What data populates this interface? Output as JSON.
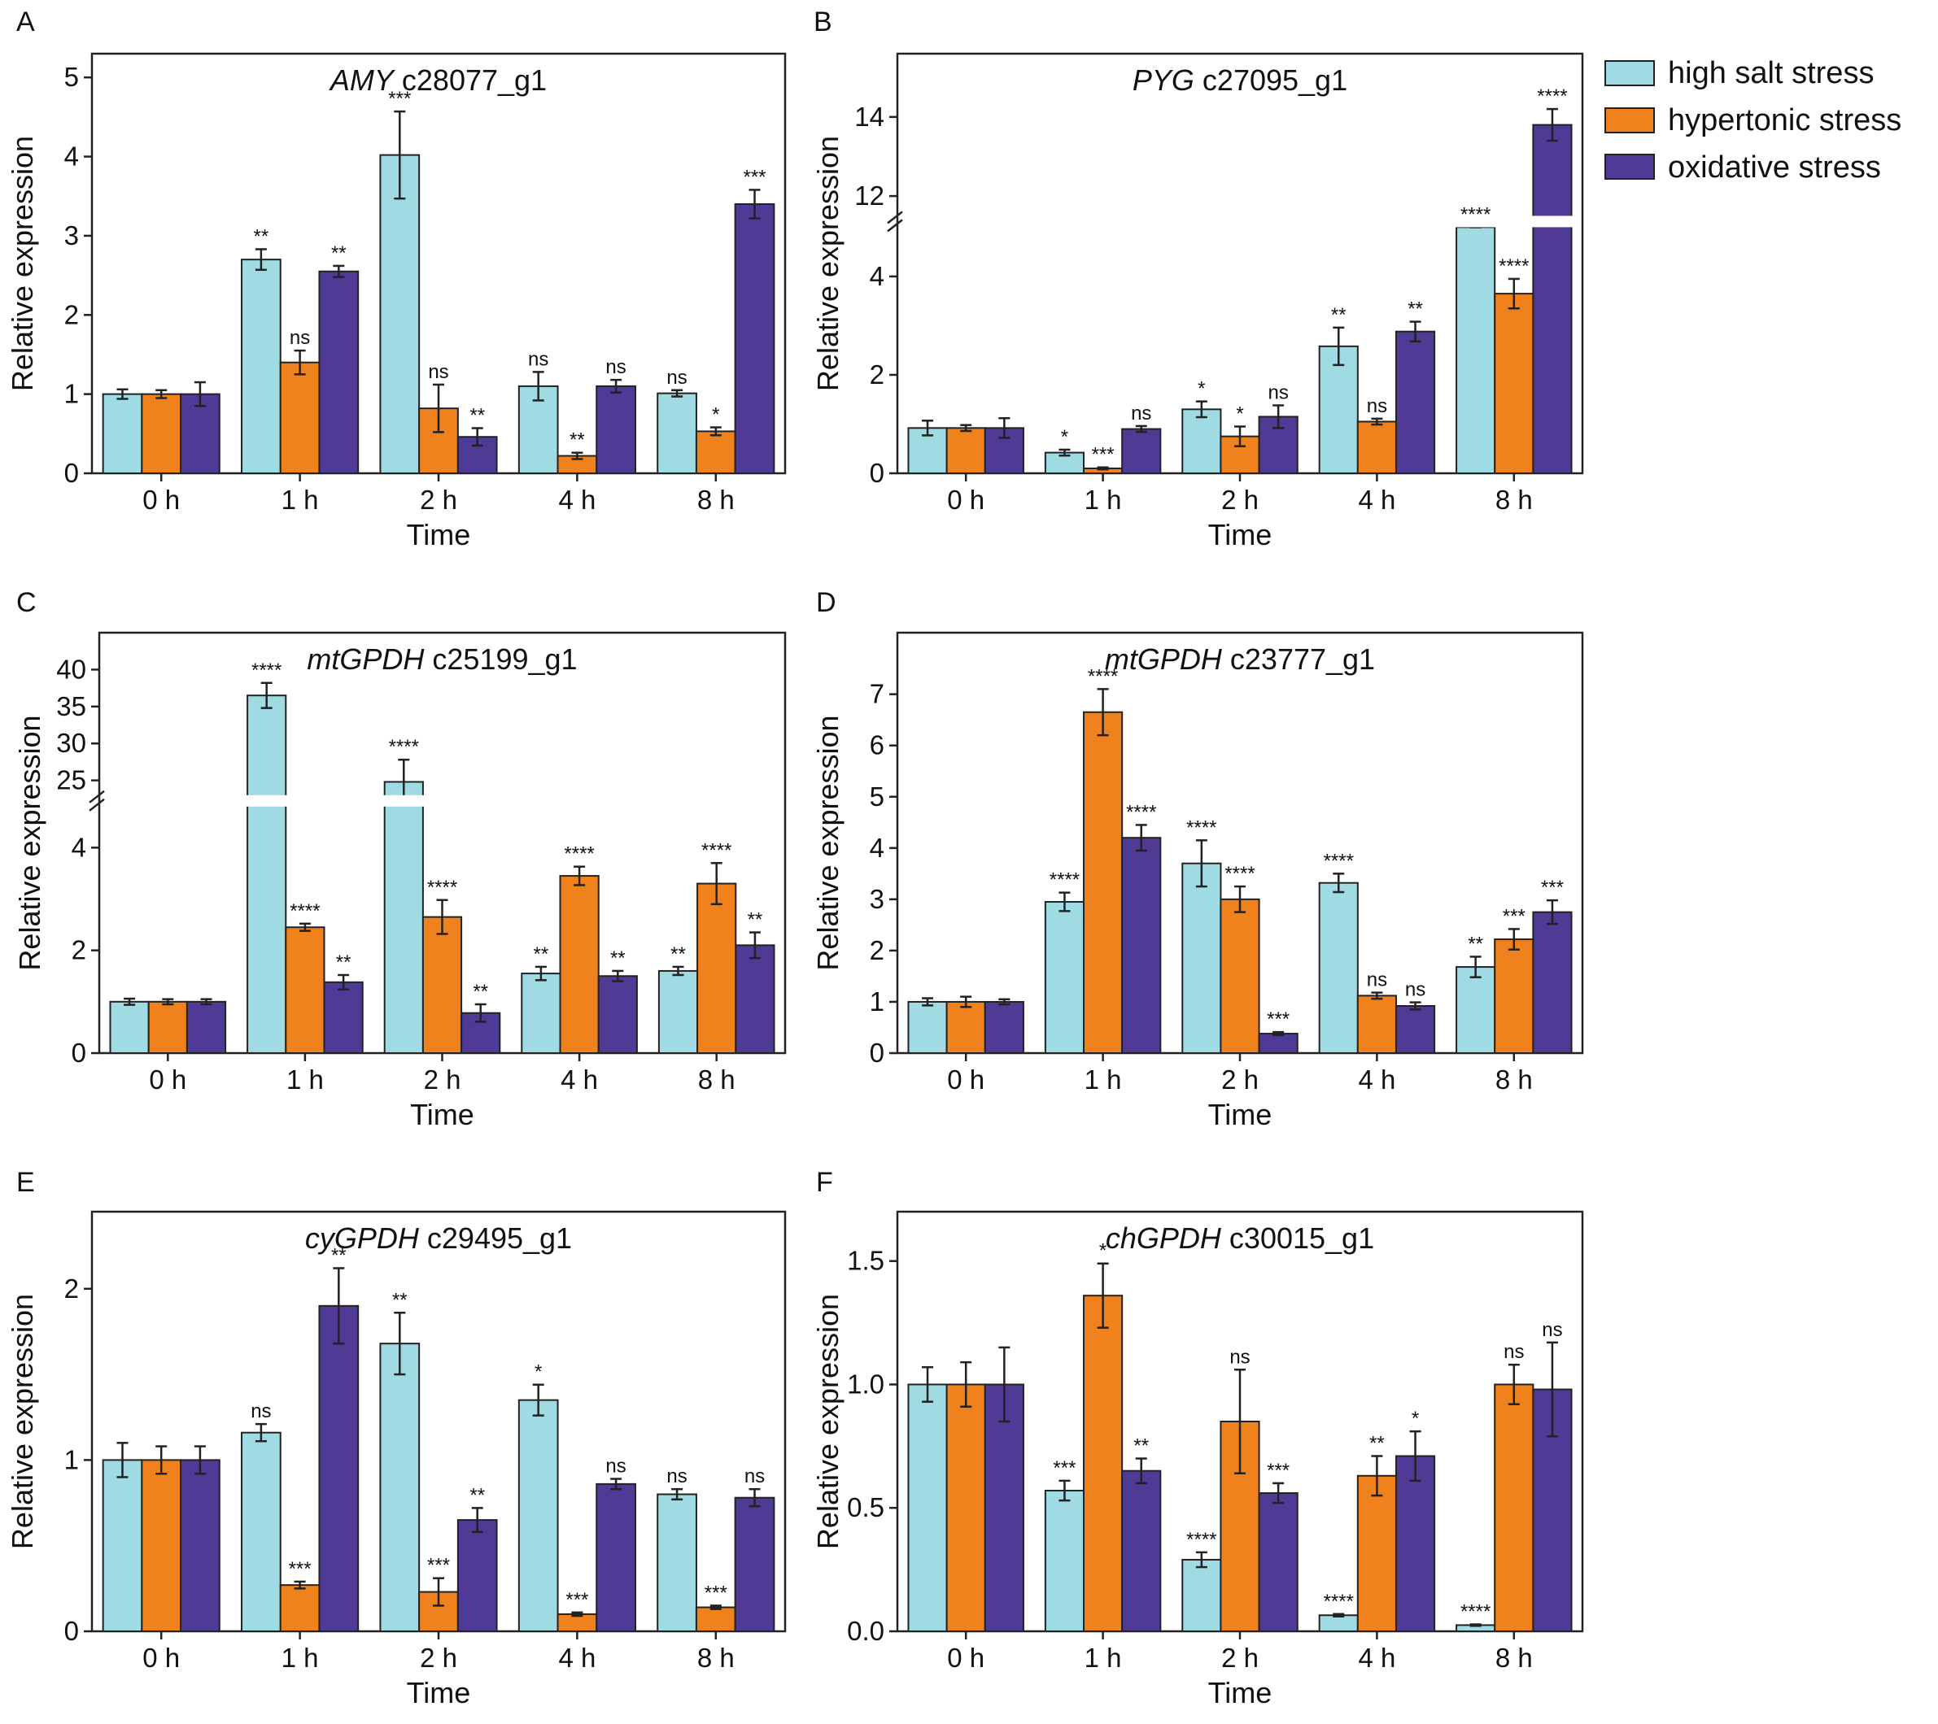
{
  "figure": {
    "legend": [
      {
        "label": "high salt stress",
        "color": "#a0dbe4"
      },
      {
        "label": "hypertonic stress",
        "color": "#f0821e"
      },
      {
        "label": "oxidative stress",
        "color": "#4f3a96"
      }
    ],
    "xlabel": "Time",
    "ylabel": "Relative expression",
    "categories": [
      "0 h",
      "1 h",
      "2 h",
      "4 h",
      "8 h"
    ]
  },
  "chart_data": [
    {
      "type": "bar",
      "panel": "A",
      "title_gene": "AMY",
      "title_id": "c28077_g1",
      "ylim": [
        0,
        5.3
      ],
      "yticks": [
        0,
        1,
        2,
        3,
        4,
        5
      ],
      "series": [
        {
          "name": "high salt stress",
          "values": [
            1.0,
            2.7,
            4.02,
            1.1,
            1.01
          ],
          "errors": [
            0.06,
            0.13,
            0.55,
            0.18,
            0.04
          ],
          "sig": [
            "",
            "**",
            "***",
            "ns",
            "ns"
          ]
        },
        {
          "name": "hypertonic stress",
          "values": [
            1.0,
            1.4,
            0.82,
            0.22,
            0.53
          ],
          "errors": [
            0.05,
            0.15,
            0.3,
            0.04,
            0.05
          ],
          "sig": [
            "",
            "ns",
            "ns",
            "**",
            "*"
          ]
        },
        {
          "name": "oxidative stress",
          "values": [
            1.0,
            2.55,
            0.46,
            1.1,
            3.4
          ],
          "errors": [
            0.15,
            0.07,
            0.11,
            0.08,
            0.18
          ],
          "sig": [
            "",
            "**",
            "**",
            "ns",
            "***"
          ]
        }
      ]
    },
    {
      "type": "bar",
      "panel": "B",
      "title_gene": "PYG",
      "title_id": "c27095_g1",
      "broken_axis": {
        "lower_max": 5.0,
        "upper_min": 11.5,
        "upper_max": 15.6
      },
      "yticks_lower": [
        0,
        2,
        4
      ],
      "yticks_upper": [
        12,
        14
      ],
      "series": [
        {
          "name": "high salt stress",
          "values": [
            0.92,
            0.42,
            1.3,
            2.58,
            5.0
          ],
          "errors": [
            0.15,
            0.06,
            0.16,
            0.38,
            0.0
          ],
          "sig": [
            "",
            "*",
            "*",
            "**",
            "****"
          ]
        },
        {
          "name": "hypertonic stress",
          "values": [
            0.92,
            0.1,
            0.75,
            1.05,
            3.65
          ],
          "errors": [
            0.06,
            0.02,
            0.2,
            0.06,
            0.3
          ],
          "sig": [
            "",
            "***",
            "*",
            "ns",
            "****"
          ]
        },
        {
          "name": "oxidative stress",
          "values": [
            0.92,
            0.9,
            1.15,
            2.88,
            13.8
          ],
          "errors": [
            0.2,
            0.06,
            0.23,
            0.2,
            0.4
          ],
          "sig": [
            "",
            "ns",
            "ns",
            "**",
            "****"
          ]
        }
      ]
    },
    {
      "type": "bar",
      "panel": "C",
      "title_gene": "mtGPDH",
      "title_id": "c25199_g1",
      "broken_axis": {
        "lower_max": 4.8,
        "upper_min": 23.0,
        "upper_max": 45.0
      },
      "yticks_lower": [
        0,
        2,
        4
      ],
      "yticks_upper": [
        25,
        30,
        35,
        40
      ],
      "series": [
        {
          "name": "high salt stress",
          "values": [
            1.0,
            36.5,
            24.8,
            1.55,
            1.6
          ],
          "errors": [
            0.06,
            1.7,
            3.0,
            0.13,
            0.08
          ],
          "sig": [
            "",
            "****",
            "****",
            "**",
            "**"
          ]
        },
        {
          "name": "hypertonic stress",
          "values": [
            1.0,
            2.45,
            2.65,
            3.45,
            3.3
          ],
          "errors": [
            0.05,
            0.07,
            0.33,
            0.18,
            0.4
          ],
          "sig": [
            "",
            "****",
            "****",
            "****",
            "****"
          ]
        },
        {
          "name": "oxidative stress",
          "values": [
            1.0,
            1.38,
            0.78,
            1.5,
            2.1
          ],
          "errors": [
            0.05,
            0.14,
            0.17,
            0.1,
            0.25
          ],
          "sig": [
            "",
            "**",
            "**",
            "**",
            "**"
          ]
        }
      ]
    },
    {
      "type": "bar",
      "panel": "D",
      "title_gene": "mtGPDH",
      "title_id": "c23777_g1",
      "ylim": [
        0,
        8.2
      ],
      "yticks": [
        0,
        1,
        2,
        3,
        4,
        5,
        6,
        7
      ],
      "series": [
        {
          "name": "high salt stress",
          "values": [
            1.0,
            2.95,
            3.7,
            3.32,
            1.68
          ],
          "errors": [
            0.07,
            0.18,
            0.45,
            0.18,
            0.2
          ],
          "sig": [
            "",
            "****",
            "****",
            "****",
            "**"
          ]
        },
        {
          "name": "hypertonic stress",
          "values": [
            1.0,
            6.65,
            3.0,
            1.12,
            2.22
          ],
          "errors": [
            0.1,
            0.45,
            0.25,
            0.06,
            0.2
          ],
          "sig": [
            "",
            "****",
            "****",
            "ns",
            "***"
          ]
        },
        {
          "name": "oxidative stress",
          "values": [
            1.0,
            4.2,
            0.38,
            0.92,
            2.75
          ],
          "errors": [
            0.05,
            0.25,
            0.03,
            0.07,
            0.23
          ],
          "sig": [
            "",
            "****",
            "***",
            "ns",
            "***"
          ]
        }
      ]
    },
    {
      "type": "bar",
      "panel": "E",
      "title_gene": "cyGPDH",
      "title_id": "c29495_g1",
      "ylim": [
        0,
        2.45
      ],
      "yticks": [
        0,
        1,
        2
      ],
      "series": [
        {
          "name": "high salt stress",
          "values": [
            1.0,
            1.16,
            1.68,
            1.35,
            0.8
          ],
          "errors": [
            0.1,
            0.05,
            0.18,
            0.09,
            0.03
          ],
          "sig": [
            "",
            "ns",
            "**",
            "*",
            "ns"
          ]
        },
        {
          "name": "hypertonic stress",
          "values": [
            1.0,
            0.27,
            0.23,
            0.1,
            0.14
          ],
          "errors": [
            0.08,
            0.02,
            0.08,
            0.01,
            0.01
          ],
          "sig": [
            "",
            "***",
            "***",
            "***",
            "***"
          ]
        },
        {
          "name": "oxidative stress",
          "values": [
            1.0,
            1.9,
            0.65,
            0.86,
            0.78
          ],
          "errors": [
            0.08,
            0.22,
            0.07,
            0.03,
            0.05
          ],
          "sig": [
            "",
            "**",
            "**",
            "ns",
            "ns"
          ]
        }
      ]
    },
    {
      "type": "bar",
      "panel": "F",
      "title_gene": "chGPDH",
      "title_id": "c30015_g1",
      "ylim": [
        0,
        1.7
      ],
      "yticks": [
        0.0,
        0.5,
        1.0,
        1.5
      ],
      "series": [
        {
          "name": "high salt stress",
          "values": [
            1.0,
            0.57,
            0.29,
            0.065,
            0.025
          ],
          "errors": [
            0.07,
            0.04,
            0.03,
            0.005,
            0.003
          ],
          "sig": [
            "",
            "***",
            "****",
            "****",
            "****"
          ]
        },
        {
          "name": "hypertonic stress",
          "values": [
            1.0,
            1.36,
            0.85,
            0.63,
            1.0
          ],
          "errors": [
            0.09,
            0.13,
            0.21,
            0.08,
            0.08
          ],
          "sig": [
            "",
            "*",
            "ns",
            "**",
            "ns"
          ]
        },
        {
          "name": "oxidative stress",
          "values": [
            1.0,
            0.65,
            0.56,
            0.71,
            0.98
          ],
          "errors": [
            0.15,
            0.05,
            0.04,
            0.1,
            0.19
          ],
          "sig": [
            "",
            "**",
            "***",
            "*",
            "ns"
          ]
        }
      ]
    }
  ]
}
